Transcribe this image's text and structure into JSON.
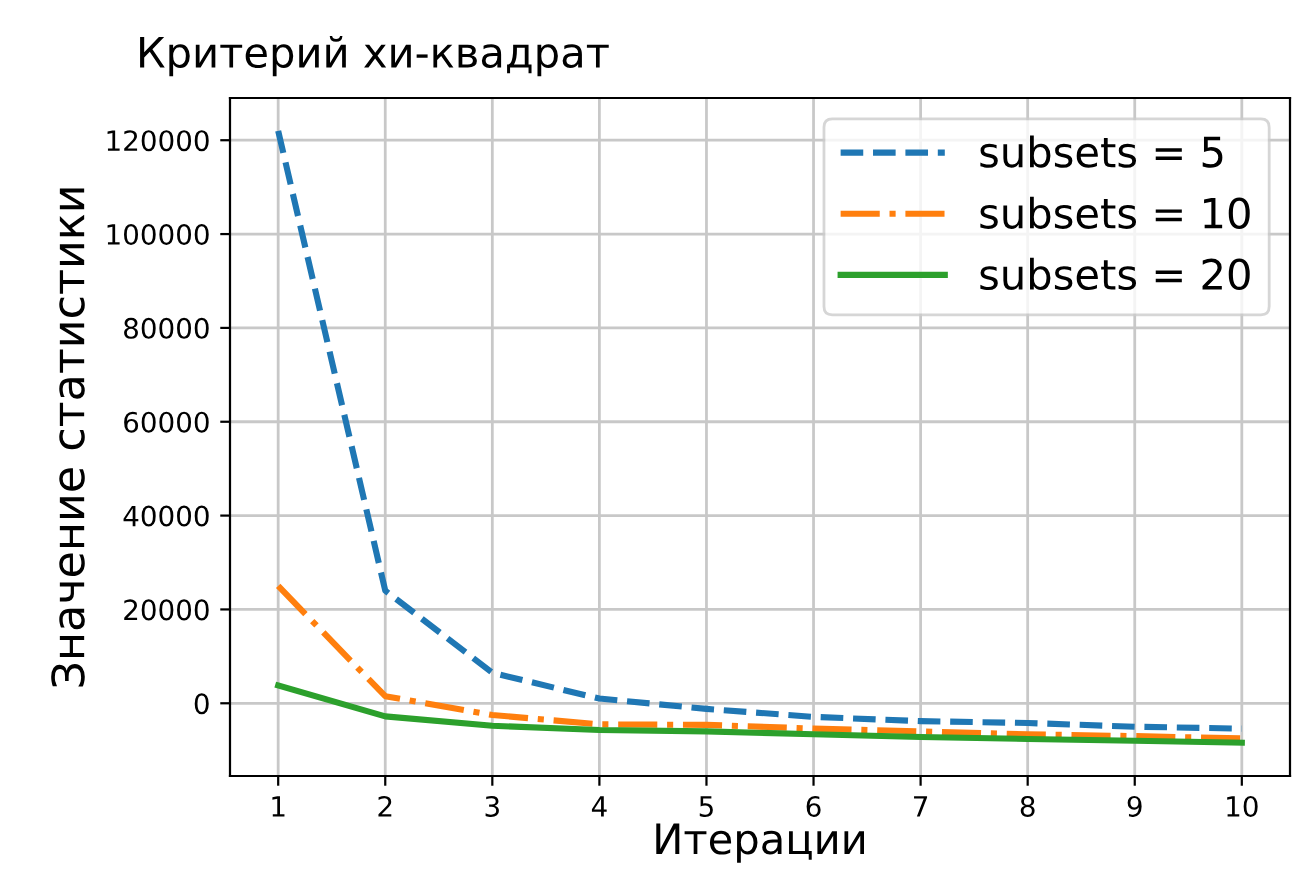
{
  "chart_data": {
    "type": "line",
    "title": "Критерий хи-квадрат",
    "xlabel": "Итерации",
    "ylabel": "Значение статистики",
    "x": [
      1,
      2,
      3,
      4,
      5,
      6,
      7,
      8,
      9,
      10
    ],
    "series": [
      {
        "name": "subsets = 5",
        "color": "#1f77b4",
        "line_style": "dashed",
        "values": [
          122000,
          24000,
          6500,
          1000,
          -1200,
          -2900,
          -3800,
          -4200,
          -5000,
          -5400
        ]
      },
      {
        "name": "subsets = 10",
        "color": "#ff7f0e",
        "line_style": "dashdot",
        "values": [
          25000,
          1500,
          -2500,
          -4500,
          -4600,
          -5400,
          -6000,
          -6600,
          -7000,
          -7500
        ]
      },
      {
        "name": "subsets = 20",
        "color": "#2ca02c",
        "line_style": "solid",
        "values": [
          3800,
          -2800,
          -4800,
          -5700,
          -6000,
          -6600,
          -7200,
          -7600,
          -8000,
          -8400
        ]
      }
    ],
    "xlim": [
      0.55,
      10.45
    ],
    "ylim": [
      -15500,
      129000
    ],
    "xticks": [
      1,
      2,
      3,
      4,
      5,
      6,
      7,
      8,
      9,
      10
    ],
    "yticks": [
      0,
      20000,
      40000,
      60000,
      80000,
      100000,
      120000
    ],
    "grid": true,
    "legend": "top right"
  }
}
